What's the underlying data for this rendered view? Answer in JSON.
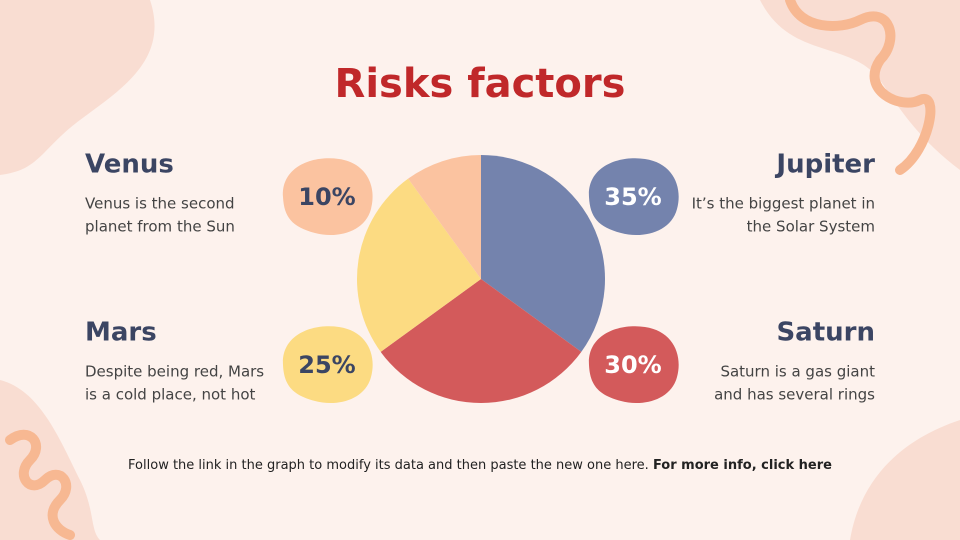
{
  "chart_data": {
    "type": "pie",
    "title": "Risks factors",
    "categories": [
      "Jupiter",
      "Saturn",
      "Mars",
      "Venus"
    ],
    "values": [
      35,
      30,
      25,
      10
    ],
    "value_labels": [
      "35%",
      "30%",
      "25%",
      "10%"
    ],
    "colors": [
      "#7483ad",
      "#d35a5b",
      "#fcdb82",
      "#fbc3a0"
    ],
    "descriptions": [
      [
        "It’s the biggest planet in",
        "the Solar System"
      ],
      [
        "Saturn is a gas giant",
        "and has several rings"
      ],
      [
        "Despite being red, Mars",
        "is a cold place, not hot"
      ],
      [
        "Venus is the second",
        "planet from the Sun"
      ]
    ]
  },
  "footer": {
    "text": "Follow the link in the graph to modify its data and then paste the new one here.",
    "link": "For more info, click here"
  }
}
